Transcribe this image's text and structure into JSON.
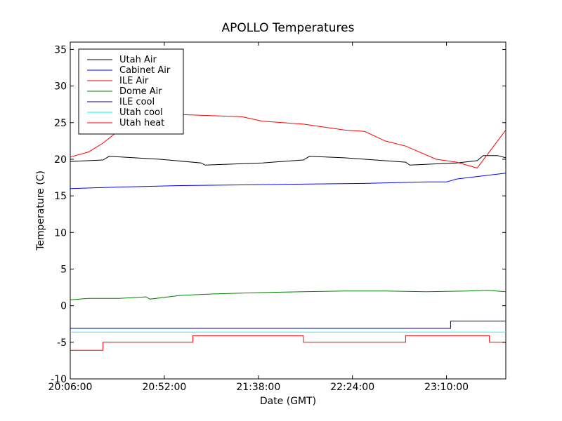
{
  "chart_data": {
    "type": "line",
    "title": "APOLLO Temperatures",
    "xlabel": "Date (GMT)",
    "ylabel": "Temperature (C)",
    "xlim": [
      "20:06:00",
      "23:39:00"
    ],
    "ylim": [
      -10,
      36
    ],
    "x_ticks": [
      "20:06:00",
      "20:52:00",
      "21:38:00",
      "22:24:00",
      "23:10:00"
    ],
    "y_ticks": [
      -10,
      -5,
      0,
      5,
      10,
      15,
      20,
      25,
      30,
      35
    ],
    "grid": false,
    "legend_position": "top-left",
    "series": [
      {
        "name": "Utah Air",
        "color": "#000000",
        "x": [
          "20:06:00",
          "20:22:00",
          "20:25:00",
          "20:50:00",
          "21:10:00",
          "21:12:00",
          "21:40:00",
          "22:00:00",
          "22:03:00",
          "22:20:00",
          "22:50:00",
          "22:52:00",
          "23:15:00",
          "23:25:00",
          "23:28:00",
          "23:35:00",
          "23:39:00"
        ],
        "y": [
          19.7,
          19.9,
          20.4,
          20.0,
          19.5,
          19.2,
          19.5,
          19.9,
          20.4,
          20.2,
          19.6,
          19.2,
          19.5,
          19.8,
          20.5,
          20.5,
          20.2
        ]
      },
      {
        "name": "Cabinet Air",
        "color": "#0000ff",
        "x": [
          "20:06:00",
          "20:30:00",
          "21:00:00",
          "21:30:00",
          "22:00:00",
          "22:30:00",
          "23:00:00",
          "23:10:00",
          "23:15:00",
          "23:39:00"
        ],
        "y": [
          16.0,
          16.2,
          16.4,
          16.5,
          16.6,
          16.7,
          16.9,
          16.9,
          17.3,
          18.1
        ]
      },
      {
        "name": "ILE Air",
        "color": "#ff0000",
        "x": [
          "20:06:00",
          "20:15:00",
          "20:22:00",
          "20:30:00",
          "20:40:00",
          "20:50:00",
          "21:00:00",
          "21:10:00",
          "21:30:00",
          "21:40:00",
          "22:00:00",
          "22:20:00",
          "22:30:00",
          "22:40:00",
          "22:50:00",
          "23:05:00",
          "23:15:00",
          "23:25:00",
          "23:39:00"
        ],
        "y": [
          20.3,
          21.0,
          22.2,
          24.0,
          25.3,
          25.8,
          26.1,
          26.0,
          25.8,
          25.2,
          24.8,
          24.0,
          23.8,
          22.5,
          21.8,
          20.0,
          19.6,
          18.8,
          24.0
        ]
      },
      {
        "name": "Dome Air",
        "color": "#008000",
        "x": [
          "20:06:00",
          "20:15:00",
          "20:30:00",
          "20:43:00",
          "20:45:00",
          "21:00:00",
          "21:15:00",
          "21:40:00",
          "22:00:00",
          "22:20:00",
          "22:40:00",
          "23:00:00",
          "23:20:00",
          "23:30:00",
          "23:39:00"
        ],
        "y": [
          0.8,
          1.0,
          1.0,
          1.2,
          0.9,
          1.4,
          1.6,
          1.8,
          1.9,
          2.0,
          2.0,
          1.9,
          2.0,
          2.1,
          1.9
        ]
      },
      {
        "name": "ILE cool",
        "color": "#000080",
        "x": [
          "20:06:00",
          "23:12:00",
          "23:12:00",
          "23:39:00"
        ],
        "y": [
          -3.1,
          -3.1,
          -2.1,
          -2.1
        ]
      },
      {
        "name": "Utah cool",
        "color": "#00ffff",
        "x": [
          "20:06:00",
          "23:39:00"
        ],
        "y": [
          -3.6,
          -3.6
        ]
      },
      {
        "name": "Utah heat",
        "color": "#ff0000",
        "x": [
          "20:06:00",
          "20:22:00",
          "20:22:00",
          "21:06:00",
          "21:06:00",
          "22:00:00",
          "22:00:00",
          "22:50:00",
          "22:50:00",
          "23:31:00",
          "23:31:00",
          "23:39:00"
        ],
        "y": [
          -6.1,
          -6.1,
          -5.0,
          -5.0,
          -4.1,
          -4.1,
          -5.0,
          -5.0,
          -4.1,
          -4.1,
          -5.0,
          -5.0
        ]
      }
    ]
  }
}
